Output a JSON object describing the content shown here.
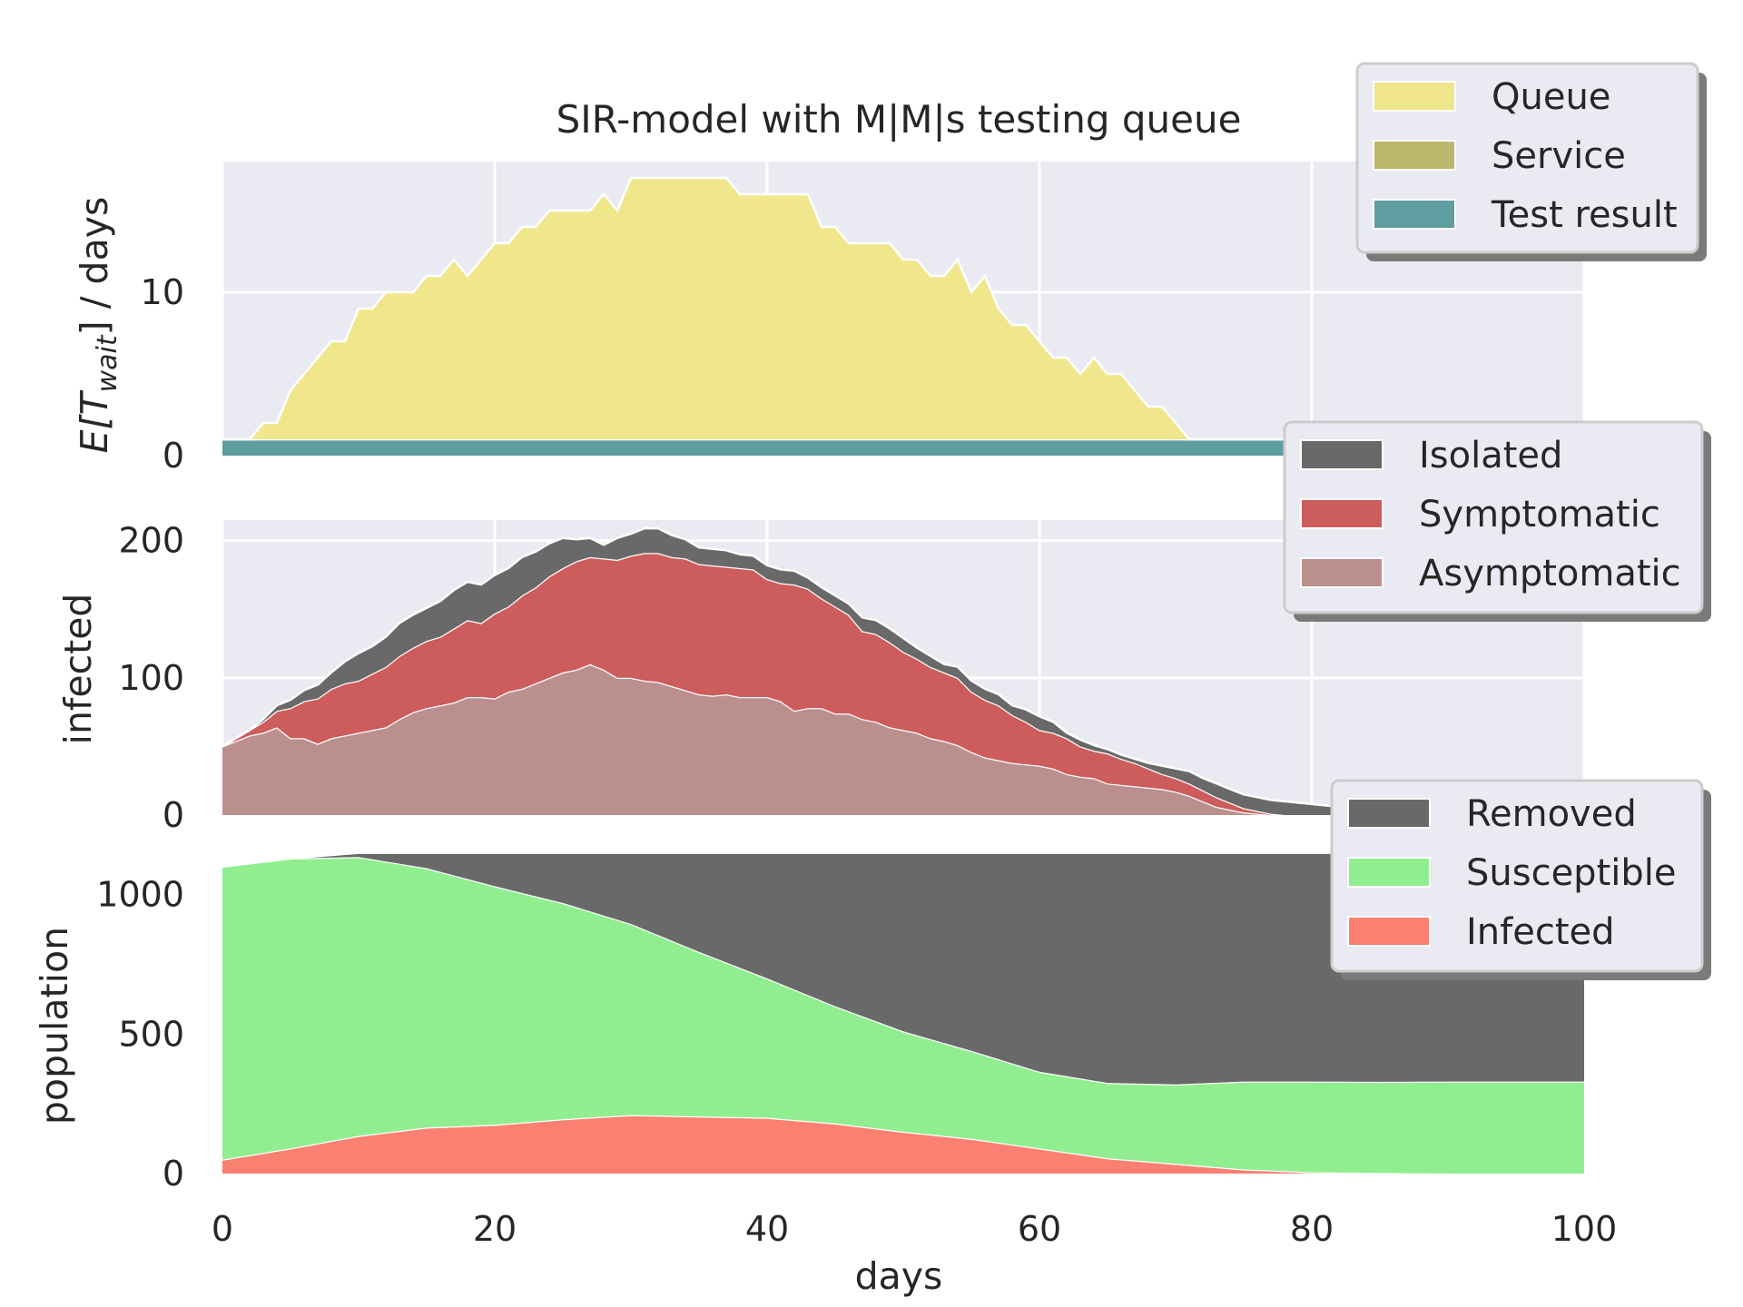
{
  "chart_data": {
    "type": "area",
    "title": "SIR-model with M|M|s testing queue",
    "xlabel": "days",
    "xlim": [
      0,
      100
    ],
    "xticks": [
      0,
      20,
      40,
      60,
      80,
      100
    ],
    "tick_labels_x": [
      "0",
      "20",
      "40",
      "60",
      "80",
      "100"
    ],
    "panels": [
      {
        "id": "wait",
        "ylabel_prefix": "E[T",
        "ylabel_sub": "wait",
        "ylabel_suffix": "] / days",
        "ylim": [
          0,
          18
        ],
        "yticks": [
          0,
          10
        ],
        "ytick_labels": [
          "0",
          "10"
        ],
        "legend": [
          "Queue",
          "Service",
          "Test result"
        ],
        "x": [
          0,
          1,
          2,
          3,
          4,
          5,
          6,
          7,
          8,
          9,
          10,
          11,
          12,
          13,
          14,
          15,
          16,
          17,
          18,
          19,
          20,
          21,
          22,
          23,
          24,
          25,
          26,
          27,
          28,
          29,
          30,
          31,
          32,
          33,
          34,
          35,
          36,
          37,
          38,
          39,
          40,
          41,
          42,
          43,
          44,
          45,
          46,
          47,
          48,
          49,
          50,
          51,
          52,
          53,
          54,
          55,
          56,
          57,
          58,
          59,
          60,
          61,
          62,
          63,
          64,
          65,
          66,
          67,
          68,
          69,
          70,
          71,
          72,
          73,
          74,
          75,
          76,
          77,
          78,
          79,
          80,
          81,
          82,
          83,
          84,
          85,
          86,
          87,
          88,
          89,
          90,
          91,
          92,
          93,
          94,
          95,
          96,
          97,
          98,
          99,
          100
        ],
        "series": [
          {
            "name": "Test result",
            "color": "#5f9ea0",
            "values": [
              1,
              1,
              1,
              1,
              1,
              1,
              1,
              1,
              1,
              1,
              1,
              1,
              1,
              1,
              1,
              1,
              1,
              1,
              1,
              1,
              1,
              1,
              1,
              1,
              1,
              1,
              1,
              1,
              1,
              1,
              1,
              1,
              1,
              1,
              1,
              1,
              1,
              1,
              1,
              1,
              1,
              1,
              1,
              1,
              1,
              1,
              1,
              1,
              1,
              1,
              1,
              1,
              1,
              1,
              1,
              1,
              1,
              1,
              1,
              1,
              1,
              1,
              1,
              1,
              1,
              1,
              1,
              1,
              1,
              1,
              1,
              1,
              1,
              1,
              1,
              1,
              1,
              1,
              1,
              1,
              1,
              1,
              1,
              1,
              1,
              1,
              1,
              1,
              1,
              1,
              1,
              1,
              1,
              1,
              1,
              1,
              1,
              1,
              1,
              1,
              1
            ]
          },
          {
            "name": "Service",
            "color": "#bdb76b",
            "values": [
              0,
              0,
              0,
              0,
              0,
              0,
              0,
              0,
              0,
              0,
              0,
              0,
              0,
              0,
              0,
              0,
              0,
              0,
              0,
              0,
              0,
              0,
              0,
              0,
              0,
              0,
              0,
              0,
              0,
              0,
              0,
              0,
              0,
              0,
              0,
              0,
              0,
              0,
              0,
              0,
              0,
              0,
              0,
              0,
              0,
              0,
              0,
              0,
              0,
              0,
              0,
              0,
              0,
              0,
              0,
              0,
              0,
              0,
              0,
              0,
              0,
              0,
              0,
              0,
              0,
              0,
              0,
              0,
              0,
              0,
              0,
              0,
              0,
              0,
              0,
              0,
              0,
              0,
              0,
              0,
              0,
              0,
              0,
              0,
              0,
              0,
              0,
              0,
              0,
              0,
              0,
              0,
              0,
              0,
              0,
              0,
              0,
              0,
              0,
              0,
              0
            ]
          },
          {
            "name": "Queue",
            "color": "#f0e68c",
            "values": [
              0,
              0,
              0,
              1,
              1,
              3,
              4,
              5,
              6,
              6,
              8,
              8,
              9,
              9,
              9,
              10,
              10,
              11,
              10,
              11,
              12,
              12,
              13,
              13,
              14,
              14,
              14,
              14,
              15,
              14,
              16,
              16,
              16,
              16,
              16,
              16,
              16,
              16,
              15,
              15,
              15,
              15,
              15,
              15,
              13,
              13,
              12,
              12,
              12,
              12,
              11,
              11,
              10,
              10,
              11,
              9,
              10,
              8,
              7,
              7,
              6,
              5,
              5,
              4,
              5,
              4,
              4,
              3,
              2,
              2,
              1,
              0,
              0,
              0,
              0,
              0,
              0,
              0,
              0,
              0,
              0,
              0,
              0,
              0,
              0,
              0,
              0,
              0,
              0,
              0,
              0,
              0,
              0,
              0,
              0,
              0,
              0,
              0,
              0,
              0,
              0
            ]
          }
        ]
      },
      {
        "id": "infected",
        "ylabel": "infected",
        "ylim": [
          0,
          215
        ],
        "yticks": [
          0,
          100,
          200
        ],
        "ytick_labels": [
          "0",
          "100",
          "200"
        ],
        "legend": [
          "Isolated",
          "Symptomatic",
          "Asymptomatic"
        ],
        "x": [
          0,
          1,
          2,
          3,
          4,
          5,
          6,
          7,
          8,
          9,
          10,
          11,
          12,
          13,
          14,
          15,
          16,
          17,
          18,
          19,
          20,
          21,
          22,
          23,
          24,
          25,
          26,
          27,
          28,
          29,
          30,
          31,
          32,
          33,
          34,
          35,
          36,
          37,
          38,
          39,
          40,
          41,
          42,
          43,
          44,
          45,
          46,
          47,
          48,
          49,
          50,
          51,
          52,
          53,
          54,
          55,
          56,
          57,
          58,
          59,
          60,
          61,
          62,
          63,
          64,
          65,
          66,
          67,
          68,
          69,
          70,
          71,
          72,
          73,
          74,
          75,
          76,
          77,
          78,
          79,
          80,
          81,
          82,
          83,
          84,
          85,
          86,
          87,
          88,
          89,
          90,
          91,
          92,
          93,
          94,
          95,
          96,
          97,
          98,
          99,
          100
        ],
        "series": [
          {
            "name": "Asymptomatic",
            "color": "#bc8f8f",
            "values": [
              50,
              54,
              58,
              60,
              64,
              56,
              56,
              52,
              56,
              58,
              60,
              62,
              64,
              70,
              75,
              78,
              80,
              82,
              86,
              86,
              85,
              90,
              92,
              96,
              100,
              104,
              106,
              110,
              106,
              100,
              100,
              98,
              97,
              94,
              91,
              88,
              87,
              88,
              86,
              86,
              86,
              83,
              76,
              78,
              78,
              74,
              74,
              70,
              68,
              64,
              62,
              60,
              56,
              54,
              51,
              46,
              42,
              40,
              38,
              37,
              36,
              34,
              30,
              28,
              27,
              23,
              22,
              21,
              20,
              19,
              17,
              14,
              10,
              6,
              4,
              2,
              1,
              0,
              0,
              0,
              0,
              0,
              0,
              0,
              0,
              0,
              0,
              0,
              0,
              0,
              0,
              0,
              0,
              0,
              0,
              0,
              0,
              0,
              0,
              0,
              0
            ]
          },
          {
            "name": "Symptomatic",
            "color": "#cd5c5c",
            "values": [
              0,
              2,
              4,
              8,
              12,
              22,
              27,
              33,
              36,
              38,
              38,
              41,
              44,
              46,
              47,
              49,
              50,
              54,
              56,
              54,
              62,
              62,
              68,
              70,
              74,
              76,
              79,
              78,
              81,
              86,
              89,
              93,
              94,
              94,
              96,
              95,
              95,
              93,
              94,
              93,
              86,
              86,
              92,
              87,
              80,
              78,
              72,
              64,
              64,
              62,
              57,
              54,
              52,
              50,
              49,
              44,
              42,
              40,
              35,
              31,
              26,
              26,
              26,
              22,
              20,
              22,
              19,
              17,
              14,
              11,
              10,
              9,
              8,
              7,
              5,
              3,
              2,
              1,
              0,
              0,
              0,
              0,
              0,
              0,
              0,
              0,
              0,
              0,
              0,
              0,
              0,
              0,
              0,
              0,
              0,
              0,
              0,
              0,
              0,
              0,
              0
            ]
          },
          {
            "name": "Isolated",
            "color": "#696969",
            "values": [
              0,
              0,
              0,
              2,
              4,
              6,
              8,
              10,
              12,
              16,
              20,
              20,
              22,
              24,
              24,
              24,
              26,
              28,
              28,
              28,
              28,
              28,
              28,
              26,
              24,
              22,
              16,
              14,
              10,
              16,
              16,
              18,
              18,
              16,
              14,
              12,
              12,
              12,
              10,
              10,
              10,
              10,
              10,
              8,
              8,
              8,
              8,
              10,
              10,
              10,
              10,
              8,
              8,
              6,
              8,
              8,
              8,
              8,
              7,
              9,
              10,
              8,
              4,
              5,
              4,
              3,
              3,
              3,
              4,
              6,
              7,
              9,
              9,
              10,
              10,
              10,
              10,
              10,
              10,
              9,
              8,
              7,
              6,
              5,
              4,
              3,
              2,
              1,
              1,
              1,
              1,
              1,
              1,
              1,
              1,
              1,
              0,
              0,
              0,
              0,
              0
            ]
          }
        ]
      },
      {
        "id": "population",
        "ylabel": "population",
        "ylim": [
          0,
          1090
        ],
        "yticks": [
          0,
          500,
          1000
        ],
        "ytick_labels": [
          "0",
          "500",
          "1000"
        ],
        "legend": [
          "Removed",
          "Susceptible",
          "Infected"
        ],
        "x": [
          0,
          5,
          10,
          15,
          20,
          25,
          30,
          35,
          40,
          45,
          50,
          55,
          60,
          65,
          70,
          75,
          80,
          85,
          90,
          95,
          100
        ],
        "series": [
          {
            "name": "Infected",
            "color": "#fa8072",
            "values": [
              50,
              90,
              135,
              165,
              175,
              195,
              210,
              205,
              200,
              180,
              150,
              125,
              90,
              55,
              35,
              15,
              5,
              2,
              0,
              0,
              0
            ]
          },
          {
            "name": "Susceptible",
            "color": "#90ee90",
            "values": [
              1050,
              1040,
              1000,
              930,
              855,
              775,
              685,
              590,
              500,
              420,
              360,
              315,
              275,
              270,
              285,
              315,
              325,
              327,
              330,
              330,
              330
            ]
          },
          {
            "name": "Removed",
            "color": "#696969",
            "values": [
              0,
              0,
              15,
              55,
              120,
              180,
              255,
              355,
              450,
              550,
              640,
              710,
              785,
              825,
              830,
              820,
              820,
              821,
              820,
              820,
              820
            ]
          }
        ]
      }
    ]
  }
}
